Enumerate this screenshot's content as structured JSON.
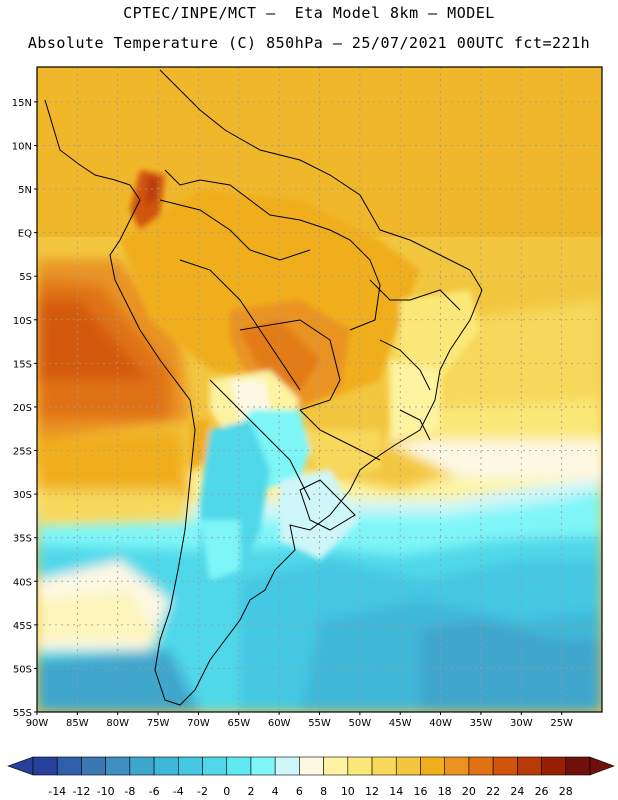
{
  "header": {
    "line1": "CPTEC/INPE/MCT –  Eta Model 8km – MODEL",
    "line2": "Absolute Temperature (C) 850hPa – 25/07/2021 00UTC fct=221h"
  },
  "map": {
    "lat_labels": [
      "15N",
      "10N",
      "5N",
      "EQ",
      "5S",
      "10S",
      "15S",
      "20S",
      "25S",
      "30S",
      "35S",
      "40S",
      "45S",
      "50S",
      "55S"
    ],
    "lon_labels": [
      "90W",
      "85W",
      "80W",
      "75W",
      "70W",
      "65W",
      "60W",
      "55W",
      "50W",
      "45W",
      "40W",
      "35W",
      "30W",
      "25W"
    ],
    "lat_range": [
      -55,
      19
    ],
    "lon_range": [
      -90,
      -20
    ]
  },
  "colorbar": {
    "ticks": [
      "-14",
      "-12",
      "-10",
      "-8",
      "-6",
      "-4",
      "-2",
      "0",
      "2",
      "4",
      "6",
      "8",
      "10",
      "12",
      "14",
      "16",
      "18",
      "20",
      "22",
      "24",
      "26",
      "28"
    ],
    "colors": [
      "#27409a",
      "#2f5fa8",
      "#3a78b4",
      "#3f8fc0",
      "#3fa6cc",
      "#40b8d8",
      "#45c8e2",
      "#50d8ea",
      "#5ee8f0",
      "#7ef6f8",
      "#cff6f8",
      "#fdf8e4",
      "#fdf3a0",
      "#fbe878",
      "#f7d85a",
      "#f3c640",
      "#f0ae1c",
      "#ea9320",
      "#e07214",
      "#d0540a",
      "#b83a08",
      "#961f04",
      "#70100a"
    ]
  }
}
